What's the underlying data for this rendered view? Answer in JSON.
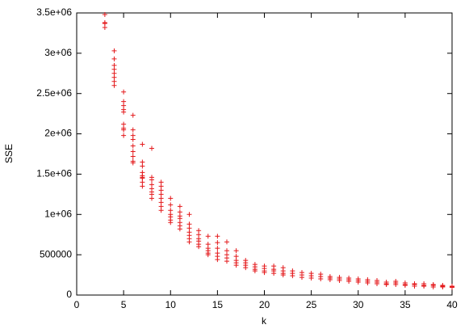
{
  "chart_data": {
    "type": "scatter",
    "x_label": "k",
    "y_label": "SSE",
    "color": "#e41a1c",
    "xlim": [
      0,
      40
    ],
    "xticks": [
      0,
      5,
      10,
      15,
      20,
      25,
      30,
      35,
      40
    ],
    "ylim": [
      0,
      3500000
    ],
    "yticks": [
      0,
      500000,
      {
        "value": 1000000,
        "label": "1e+06"
      },
      {
        "value": 1500000,
        "label": "1.5e+06"
      },
      {
        "value": 2000000,
        "label": "2e+06"
      },
      {
        "value": 2500000,
        "label": "2.5e+06"
      },
      {
        "value": 3000000,
        "label": "3e+06"
      },
      {
        "value": 3500000,
        "label": "3.5e+06"
      }
    ],
    "x": [
      3,
      3,
      3,
      3,
      4,
      4,
      4,
      4,
      4,
      4,
      4,
      4,
      5,
      5,
      5,
      5,
      5,
      5,
      5,
      5,
      5,
      6,
      6,
      6,
      6,
      6,
      6,
      6,
      6,
      6,
      7,
      7,
      7,
      7,
      7,
      7,
      7,
      7,
      7,
      8,
      8,
      8,
      8,
      8,
      8,
      8,
      8,
      9,
      9,
      9,
      9,
      9,
      9,
      9,
      9,
      10,
      10,
      10,
      10,
      10,
      10,
      10,
      11,
      11,
      11,
      11,
      11,
      11,
      11,
      12,
      12,
      12,
      12,
      12,
      12,
      12,
      13,
      13,
      13,
      13,
      13,
      13,
      14,
      14,
      14,
      14,
      14,
      14,
      15,
      15,
      15,
      15,
      15,
      15,
      16,
      16,
      16,
      16,
      16,
      17,
      17,
      17,
      17,
      17,
      18,
      18,
      18,
      18,
      19,
      19,
      19,
      19,
      20,
      20,
      20,
      20,
      21,
      21,
      21,
      21,
      22,
      22,
      22,
      22,
      23,
      23,
      23,
      24,
      24,
      24,
      25,
      25,
      25,
      26,
      26,
      26,
      27,
      27,
      27,
      28,
      28,
      28,
      29,
      29,
      29,
      30,
      30,
      30,
      31,
      31,
      31,
      32,
      32,
      32,
      33,
      33,
      33,
      34,
      34,
      34,
      35,
      35,
      35,
      36,
      36,
      36,
      37,
      37,
      37,
      38,
      38,
      38,
      39,
      39,
      39,
      40,
      40,
      40
    ],
    "values": [
      3480000.0,
      3380000.0,
      3370000.0,
      3320000.0,
      3030000.0,
      2930000.0,
      2850000.0,
      2800000.0,
      2750000.0,
      2700000.0,
      2650000.0,
      2600000.0,
      2520000.0,
      2400000.0,
      2350000.0,
      2300000.0,
      2270000.0,
      2120000.0,
      2070000.0,
      2050000.0,
      1980000.0,
      2230000.0,
      2050000.0,
      1980000.0,
      1930000.0,
      1850000.0,
      1780000.0,
      1720000.0,
      1660000.0,
      1640000.0,
      1870000.0,
      1650000.0,
      1600000.0,
      1520000.0,
      1480000.0,
      1460000.0,
      1450000.0,
      1400000.0,
      1350000.0,
      1820000.0,
      1460000.0,
      1430000.0,
      1370000.0,
      1320000.0,
      1280000.0,
      1250000.0,
      1200000.0,
      1400000.0,
      1350000.0,
      1300000.0,
      1250000.0,
      1200000.0,
      1150000.0,
      1100000.0,
      1050000.0,
      1200000.0,
      1120000.0,
      1050000.0,
      1000000.0,
      970000.0,
      930000.0,
      900000.0,
      1100000.0,
      1030000.0,
      980000.0,
      950000.0,
      900000.0,
      860000.0,
      820000.0,
      1000000.0,
      880000.0,
      830000.0,
      780000.0,
      740000.0,
      700000.0,
      660000.0,
      800000.0,
      750000.0,
      700000.0,
      670000.0,
      630000.0,
      600000.0,
      730000.0,
      630000.0,
      580000.0,
      550000.0,
      520000.0,
      500000.0,
      730000.0,
      650000.0,
      580000.0,
      520000.0,
      480000.0,
      440000.0,
      660000.0,
      550000.0,
      500000.0,
      460000.0,
      420000.0,
      550000.0,
      480000.0,
      430000.0,
      400000.0,
      370000.0,
      430000.0,
      400000.0,
      370000.0,
      340000.0,
      380000.0,
      350000.0,
      320000.0,
      300000.0,
      360000.0,
      330000.0,
      300000.0,
      280000.0,
      360000.0,
      320000.0,
      300000.0,
      270000.0,
      340000.0,
      300000.0,
      270000.0,
      250000.0,
      300000.0,
      270000.0,
      240000.0,
      280000.0,
      250000.0,
      220000.0,
      270000.0,
      240000.0,
      210000.0,
      260000.0,
      230000.0,
      200000.0,
      230000.0,
      210000.0,
      190000.0,
      220000.0,
      200000.0,
      180000.0,
      210000.0,
      190000.0,
      170000.0,
      200000.0,
      180000.0,
      160000.0,
      190000.0,
      170000.0,
      150000.0,
      180000.0,
      160000.0,
      140000.0,
      160000.0,
      140000.0,
      130000.0,
      170000.0,
      150000.0,
      130000.0,
      150000.0,
      130000.0,
      120000.0,
      140000.0,
      130000.0,
      110000.0,
      140000.0,
      120000.0,
      110000.0,
      130000.0,
      120000.0,
      100000.0,
      120000.0,
      110000.0,
      100000.0,
      110000.0,
      100000.0,
      95000.0
    ]
  }
}
